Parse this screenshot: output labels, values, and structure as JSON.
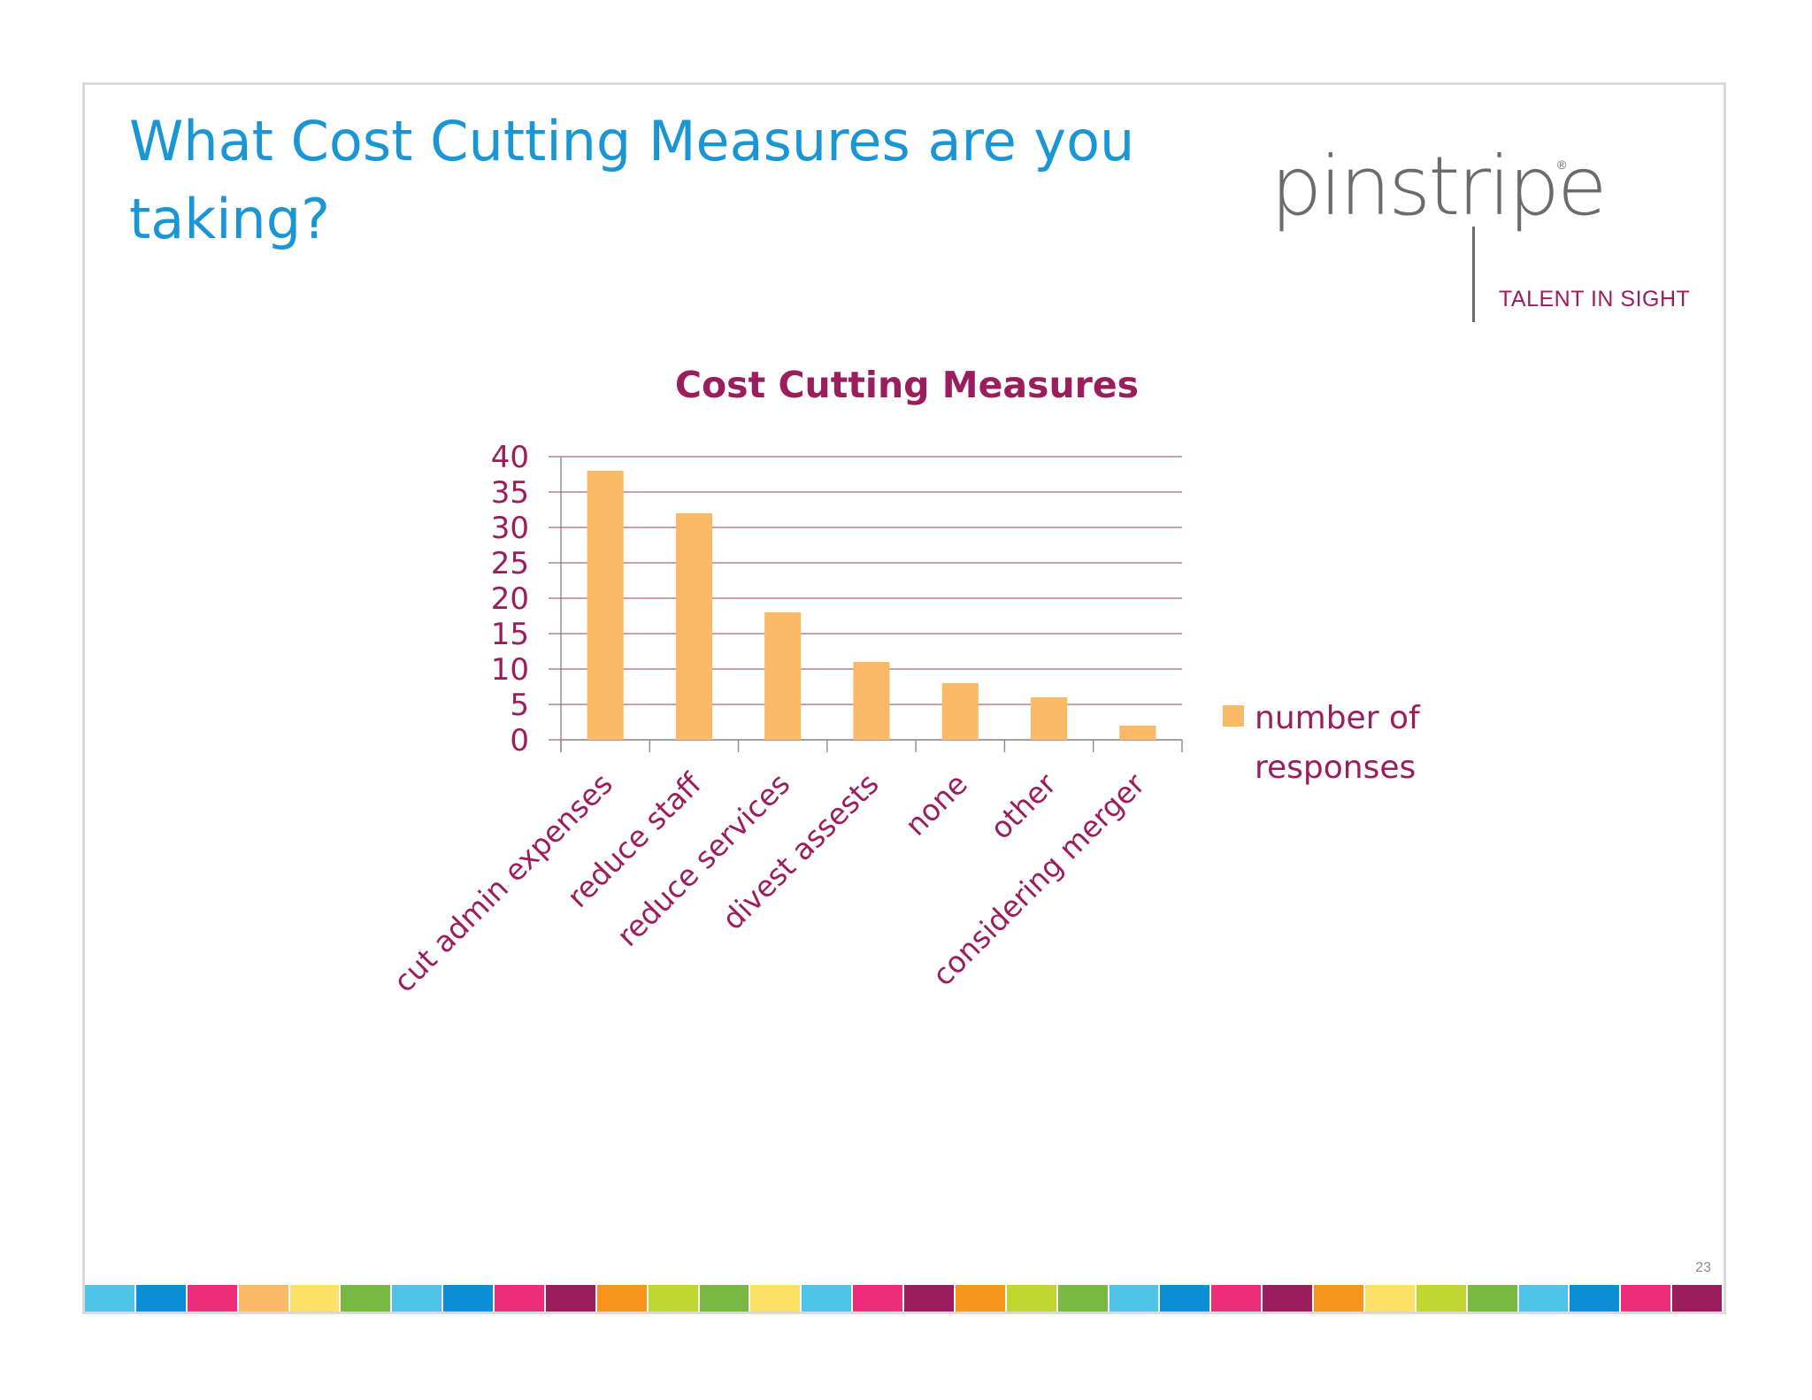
{
  "slide": {
    "title": "What Cost Cutting Measures are you taking?",
    "page_number": "23",
    "logo": {
      "wordmark": "pinstripe",
      "registered_mark": "®",
      "tagline": "TALENT IN SIGHT"
    },
    "strip_colors": [
      "#4ec3e6",
      "#0a8fd6",
      "#ee2d7a",
      "#fbb866",
      "#fde166",
      "#78b843",
      "#4ec3e6",
      "#0a8fd6",
      "#ee2d7a",
      "#9b1d5e",
      "#f7941d",
      "#bfd730",
      "#78b843",
      "#fde166",
      "#4ec3e6",
      "#ee2d7a",
      "#9b1d5e",
      "#f7941d",
      "#bfd730",
      "#78b843",
      "#4ec3e6",
      "#0a8fd6",
      "#ee2d7a",
      "#9b1d5e",
      "#f7941d",
      "#fde166",
      "#bfd730",
      "#78b843",
      "#4ec3e6",
      "#0a8fd6",
      "#ee2d7a",
      "#9b1d5e"
    ]
  },
  "chart_data": {
    "type": "bar",
    "title": "Cost Cutting Measures",
    "categories": [
      "cut admin expenses",
      "reduce staff",
      "reduce services",
      "divest assests",
      "none",
      "other",
      "considering merger"
    ],
    "series": [
      {
        "name": "number of responses",
        "values": [
          38,
          32,
          18,
          11,
          8,
          6,
          2
        ],
        "color": "#fbb866"
      }
    ],
    "y_ticks": [
      0,
      5,
      10,
      15,
      20,
      25,
      30,
      35,
      40
    ],
    "ylim": [
      0,
      40
    ],
    "grid": true,
    "grid_color": "#b2607f",
    "text_color": "#9b1d5e",
    "legend_position": "right"
  }
}
